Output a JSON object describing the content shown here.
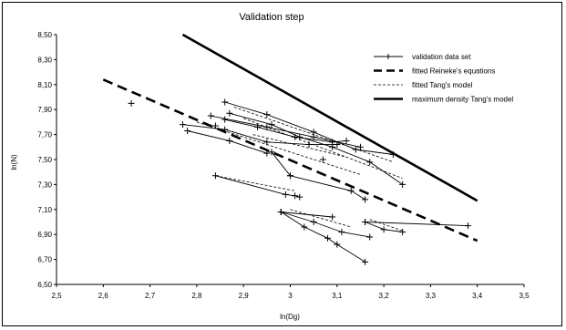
{
  "chart_data": {
    "type": "line",
    "title": "Validation step",
    "xlabel": "ln(Dg)",
    "ylabel": "ln(N)",
    "xlim": [
      2.5,
      3.5
    ],
    "ylim": [
      6.5,
      8.5
    ],
    "x_ticks": [
      "2,5",
      "2,6",
      "2,7",
      "2,8",
      "2,9",
      "3",
      "3,1",
      "3,2",
      "3,3",
      "3,4",
      "3,5"
    ],
    "y_ticks": [
      "6,50",
      "6,70",
      "6,90",
      "7,10",
      "7,30",
      "7,50",
      "7,70",
      "7,90",
      "8,10",
      "8,30",
      "8,50"
    ],
    "grid": false,
    "legend_position": "top-right",
    "legend": [
      {
        "label": "validation data set",
        "style": "thin-plus",
        "color": "#000000"
      },
      {
        "label": "fitted Reineke's equations",
        "style": "long-dash",
        "color": "#000000"
      },
      {
        "label": "fitted Tang's model",
        "style": "short-dash",
        "color": "#000000"
      },
      {
        "label": "maximum density Tang's model",
        "style": "thick",
        "color": "#000000"
      }
    ],
    "reference_lines": [
      {
        "name": "fitted Reineke's equations",
        "x": [
          2.6,
          3.4
        ],
        "y": [
          8.14,
          6.85
        ]
      },
      {
        "name": "maximum density Tang's model",
        "x": [
          2.77,
          3.4
        ],
        "y": [
          8.5,
          7.17
        ]
      }
    ],
    "series": [
      {
        "name": "validation data set",
        "x": [
          2.86,
          2.95,
          3.05,
          3.14,
          3.22
        ],
        "y": [
          7.96,
          7.86,
          7.72,
          7.58,
          7.54
        ]
      },
      {
        "name": "validation data set",
        "x": [
          2.87,
          2.96,
          3.02,
          3.09,
          3.17,
          3.24
        ],
        "y": [
          7.87,
          7.78,
          7.68,
          7.6,
          7.48,
          7.3
        ]
      },
      {
        "name": "validation data set",
        "x": [
          2.86,
          2.93,
          3.01,
          3.09,
          3.12
        ],
        "y": [
          7.82,
          7.76,
          7.68,
          7.64,
          7.65
        ]
      },
      {
        "name": "validation data set",
        "x": [
          2.83,
          2.95,
          3.05,
          3.15
        ],
        "y": [
          7.85,
          7.76,
          7.68,
          7.6
        ]
      },
      {
        "name": "validation data set",
        "x": [
          2.77,
          2.86,
          2.95,
          3.04,
          3.1
        ],
        "y": [
          7.78,
          7.74,
          7.64,
          7.62,
          7.62
        ]
      },
      {
        "name": "validation data set",
        "x": [
          2.78,
          2.87,
          2.95
        ],
        "y": [
          7.73,
          7.65,
          7.55
        ]
      },
      {
        "name": "validation data set",
        "x": [
          2.96,
          3.0
        ],
        "y": [
          7.56,
          7.37
        ]
      },
      {
        "name": "validation data set",
        "x": [
          3.0,
          3.13,
          3.16
        ],
        "y": [
          7.37,
          7.25,
          7.18
        ]
      },
      {
        "name": "validation data set",
        "x": [
          2.84,
          2.99,
          3.01,
          3.02
        ],
        "y": [
          7.37,
          7.22,
          7.21,
          7.2
        ]
      },
      {
        "name": "validation data set",
        "x": [
          2.98,
          3.03,
          3.08,
          3.1,
          3.16
        ],
        "y": [
          7.08,
          6.96,
          6.87,
          6.82,
          6.68
        ]
      },
      {
        "name": "validation data set",
        "x": [
          2.98,
          3.05,
          3.11,
          3.17
        ],
        "y": [
          7.08,
          7.0,
          6.92,
          6.88
        ]
      },
      {
        "name": "validation data set",
        "x": [
          2.98,
          3.09
        ],
        "y": [
          7.08,
          7.04
        ]
      },
      {
        "name": "validation data set",
        "x": [
          3.16,
          3.2,
          3.24
        ],
        "y": [
          7.0,
          6.94,
          6.92
        ]
      },
      {
        "name": "validation data set",
        "x": [
          3.16,
          3.38
        ],
        "y": [
          7.0,
          6.97
        ]
      },
      {
        "name": "validation data set",
        "x": [
          2.66
        ],
        "y": [
          7.95
        ]
      },
      {
        "name": "validation data set",
        "x": [
          2.84
        ],
        "y": [
          7.77
        ]
      },
      {
        "name": "validation data set",
        "x": [
          3.07
        ],
        "y": [
          7.5
        ]
      },
      {
        "name": "fitted Tang's model",
        "x": [
          2.88,
          3.22
        ],
        "y": [
          7.92,
          7.48
        ]
      },
      {
        "name": "fitted Tang's model",
        "x": [
          2.9,
          3.24
        ],
        "y": [
          7.83,
          7.35
        ]
      },
      {
        "name": "fitted Tang's model",
        "x": [
          2.8,
          3.15
        ],
        "y": [
          7.8,
          7.38
        ]
      },
      {
        "name": "fitted Tang's model",
        "x": [
          2.92,
          3.12
        ],
        "y": [
          7.7,
          7.52
        ]
      },
      {
        "name": "fitted Tang's model",
        "x": [
          2.84,
          3.01
        ],
        "y": [
          7.37,
          7.25
        ]
      },
      {
        "name": "fitted Tang's model",
        "x": [
          3.0,
          3.13
        ],
        "y": [
          7.1,
          6.96
        ]
      },
      {
        "name": "fitted Tang's model",
        "x": [
          3.17,
          3.24
        ],
        "y": [
          7.02,
          6.93
        ]
      }
    ]
  }
}
